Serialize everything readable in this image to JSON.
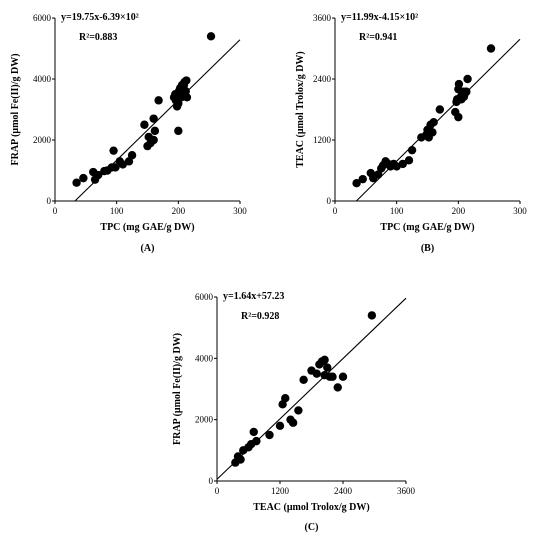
{
  "chart_data": [
    {
      "type": "scatter",
      "panel_label": "(A)",
      "xlabel": "TPC (mg GAE/g DW)",
      "ylabel": "FRAP (μmol Fe(II)/g DW)",
      "xlim": [
        0,
        300
      ],
      "ylim": [
        0,
        6000
      ],
      "xticks": [
        0,
        100,
        200,
        300
      ],
      "yticks": [
        0,
        2000,
        4000,
        6000
      ],
      "annotations": [
        "y=19.75x-6.39×10²",
        "R²=0.883"
      ],
      "fit": {
        "slope": 19.75,
        "intercept": -639
      },
      "x": [
        35,
        46,
        62,
        65,
        70,
        80,
        85,
        92,
        95,
        98,
        105,
        110,
        120,
        125,
        145,
        150,
        152,
        155,
        160,
        160,
        162,
        168,
        193,
        195,
        196,
        198,
        200,
        200,
        201,
        202,
        203,
        204,
        205,
        206,
        206,
        208,
        209,
        210,
        210,
        212,
        213,
        214,
        253
      ],
      "y": [
        600,
        750,
        950,
        700,
        850,
        980,
        1000,
        1100,
        1650,
        1100,
        1300,
        1200,
        1300,
        1500,
        2500,
        1800,
        2100,
        1900,
        2000,
        2700,
        2300,
        3300,
        3400,
        3500,
        3300,
        3100,
        3200,
        2300,
        3600,
        3500,
        3700,
        3600,
        3400,
        3500,
        3800,
        3700,
        3800,
        3500,
        3900,
        3600,
        3950,
        3400,
        5400
      ]
    },
    {
      "type": "scatter",
      "panel_label": "(B)",
      "xlabel": "TPC (mg GAE/g DW)",
      "ylabel": "TEAC (μmol Trolox/g DW)",
      "xlim": [
        0,
        300
      ],
      "ylim": [
        0,
        3600
      ],
      "xticks": [
        0,
        100,
        200,
        300
      ],
      "yticks": [
        0,
        1200,
        2400,
        3600
      ],
      "annotations": [
        "y=11.99x-4.15×10²",
        "R²=0.941"
      ],
      "fit": {
        "slope": 11.99,
        "intercept": -415
      },
      "x": [
        35,
        45,
        58,
        62,
        70,
        75,
        78,
        82,
        85,
        90,
        95,
        100,
        110,
        120,
        125,
        140,
        148,
        150,
        152,
        155,
        158,
        160,
        170,
        195,
        197,
        198,
        200,
        200,
        201,
        202,
        204,
        205,
        206,
        208,
        209,
        210,
        212,
        213,
        215,
        253
      ],
      "y": [
        350,
        430,
        550,
        450,
        520,
        640,
        700,
        780,
        740,
        680,
        730,
        680,
        730,
        800,
        1000,
        1250,
        1300,
        1400,
        1250,
        1500,
        1350,
        1550,
        1800,
        1750,
        1950,
        2000,
        2200,
        1650,
        2300,
        2000,
        2050,
        2000,
        2100,
        2150,
        2050,
        2100,
        2150,
        2150,
        2400,
        3000
      ]
    },
    {
      "type": "scatter",
      "panel_label": "(C)",
      "xlabel": "TEAC (μmol Trolox/g DW)",
      "ylabel": "FRAP (μmol Fe(II)/g DW)",
      "xlim": [
        0,
        3600
      ],
      "ylim": [
        0,
        6000
      ],
      "xticks": [
        0,
        1200,
        2400,
        3600
      ],
      "yticks": [
        0,
        2000,
        4000,
        6000
      ],
      "annotations": [
        "y=1.64x+57.23",
        "R²=0.928"
      ],
      "fit": {
        "slope": 1.64,
        "intercept": 57.23
      },
      "x": [
        350,
        400,
        450,
        500,
        600,
        650,
        700,
        750,
        1000,
        1200,
        1250,
        1300,
        1400,
        1450,
        1550,
        1650,
        1800,
        1900,
        1950,
        2000,
        2050,
        2050,
        2100,
        2150,
        2200,
        2300,
        2400,
        2950
      ],
      "y": [
        600,
        800,
        700,
        1000,
        1100,
        1200,
        1600,
        1300,
        1500,
        1800,
        2500,
        2700,
        2000,
        1900,
        2300,
        3300,
        3600,
        3500,
        3800,
        3900,
        3950,
        3450,
        3700,
        3400,
        3400,
        3050,
        3400,
        5400
      ]
    }
  ]
}
